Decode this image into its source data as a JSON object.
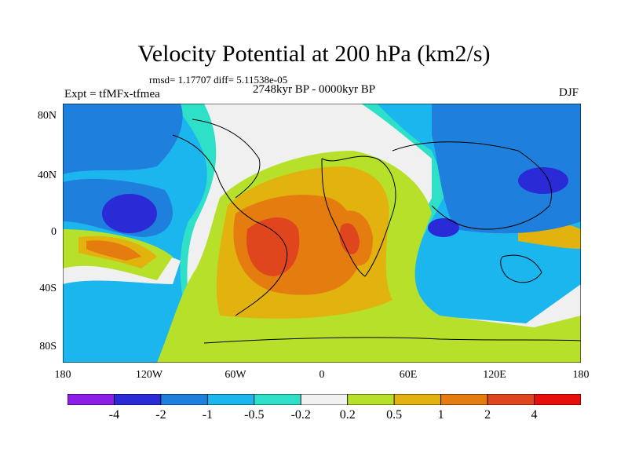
{
  "header": {
    "title": "Velocity Potential at 200 hPa (km2/s)",
    "stats": "rmsd= 1.17707 diff= 5.11538e-05",
    "experiment": "Expt = tfMFx-tfmea",
    "period": "2748kyr BP - 0000kyr BP",
    "season": "DJF"
  },
  "axes": {
    "y_ticks": [
      "80N",
      "40N",
      "0",
      "40S",
      "80S"
    ],
    "x_ticks": [
      "180",
      "120W",
      "60W",
      "0",
      "60E",
      "120E",
      "180"
    ]
  },
  "colorbar": {
    "colors": [
      "#8c1ee6",
      "#2a2ad6",
      "#1f7fdc",
      "#1cb6ee",
      "#2ee0c8",
      "#f0f0f0",
      "#b6e02a",
      "#e2b20e",
      "#e47c10",
      "#e0461e",
      "#e80e0e"
    ],
    "labels": [
      "-4",
      "-2",
      "-1",
      "-0.5",
      "-0.2",
      "0.2",
      "0.5",
      "1",
      "2",
      "4"
    ]
  }
}
